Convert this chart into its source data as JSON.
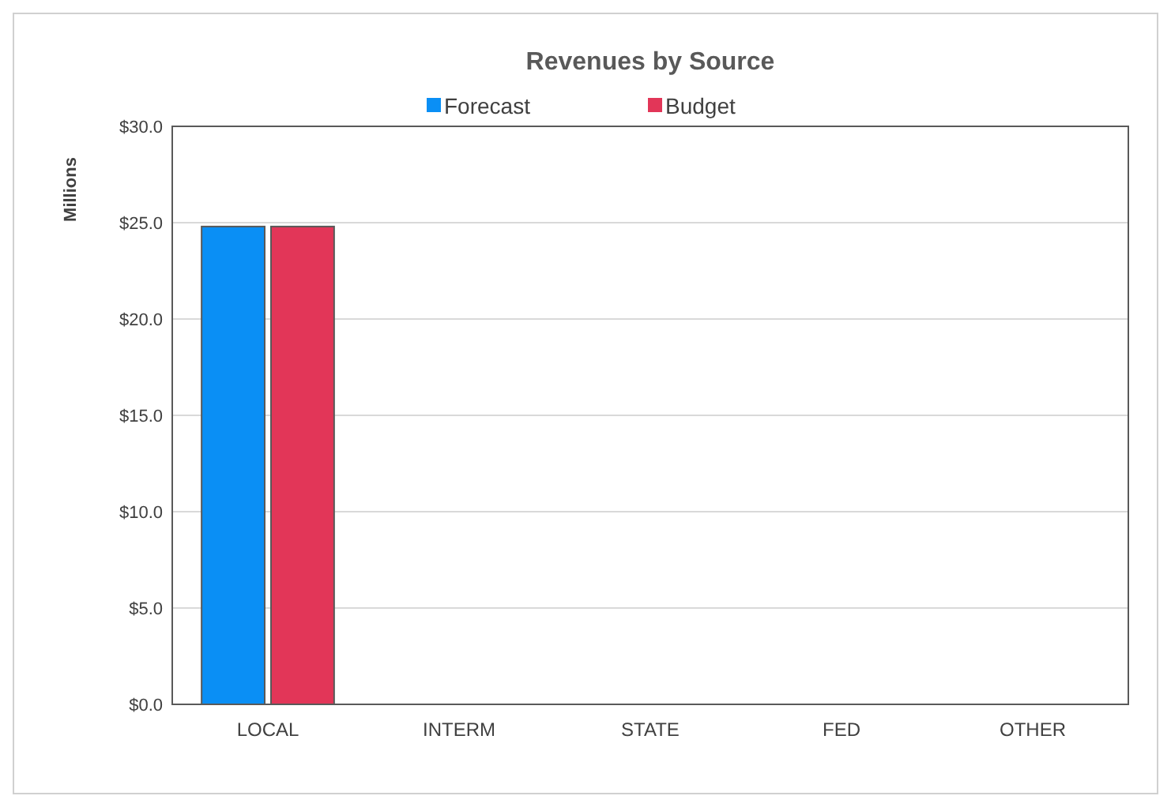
{
  "chart_data": {
    "type": "bar",
    "title": "Revenues by Source",
    "ylabel": "Millions",
    "categories": [
      "LOCAL",
      "INTERM",
      "STATE",
      "FED",
      "OTHER"
    ],
    "series": [
      {
        "name": "Forecast",
        "color": "#0a8ff5",
        "values": [
          24.8,
          0,
          0,
          0,
          0
        ]
      },
      {
        "name": "Budget",
        "color": "#e23658",
        "values": [
          24.8,
          0,
          0,
          0,
          0
        ]
      }
    ],
    "ylim": [
      0,
      30
    ],
    "yticks": [
      {
        "value": 0,
        "label": "$0.0"
      },
      {
        "value": 5,
        "label": "$5.0"
      },
      {
        "value": 10,
        "label": "$10.0"
      },
      {
        "value": 15,
        "label": "$15.0"
      },
      {
        "value": 20,
        "label": "$20.0"
      },
      {
        "value": 25,
        "label": "$25.0"
      },
      {
        "value": 30,
        "label": "$30.0"
      }
    ],
    "grid": "y",
    "legend": "top"
  }
}
